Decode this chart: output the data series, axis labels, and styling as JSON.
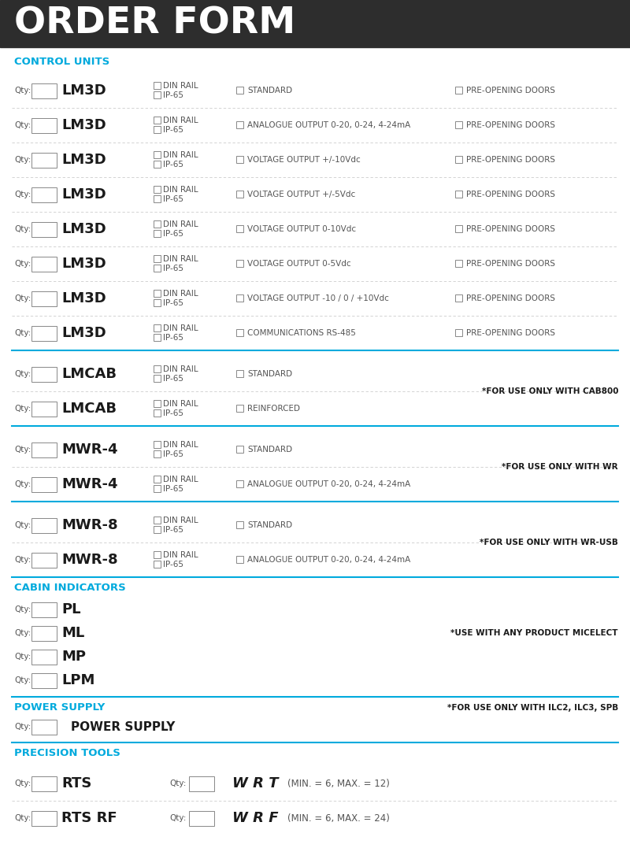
{
  "title": "ORDER FORM",
  "title_bg": "#2d2d2d",
  "title_color": "#ffffff",
  "cyan_color": "#00aadd",
  "dark_text": "#1a1a1a",
  "gray_text": "#555555",
  "lm3d_rows": [
    {
      "model": "LM3D",
      "option": "STANDARD",
      "right": "PRE-OPENING DOORS"
    },
    {
      "model": "LM3D",
      "option": "ANALOGUE OUTPUT 0-20, 0-24, 4-24mA",
      "right": "PRE-OPENING DOORS"
    },
    {
      "model": "LM3D",
      "option": "VOLTAGE OUTPUT +/-10Vdc",
      "right": "PRE-OPENING DOORS"
    },
    {
      "model": "LM3D",
      "option": "VOLTAGE OUTPUT +/-5Vdc",
      "right": "PRE-OPENING DOORS"
    },
    {
      "model": "LM3D",
      "option": "VOLTAGE OUTPUT 0-10Vdc",
      "right": "PRE-OPENING DOORS"
    },
    {
      "model": "LM3D",
      "option": "VOLTAGE OUTPUT 0-5Vdc",
      "right": "PRE-OPENING DOORS"
    },
    {
      "model": "LM3D",
      "option": "VOLTAGE OUTPUT -10 / 0 / +10Vdc",
      "right": "PRE-OPENING DOORS"
    },
    {
      "model": "LM3D",
      "option": "COMMUNICATIONS RS-485",
      "right": "PRE-OPENING DOORS"
    }
  ],
  "lmcab_rows": [
    {
      "model": "LMCAB",
      "option": "STANDARD"
    },
    {
      "model": "LMCAB",
      "option": "REINFORCED"
    }
  ],
  "lmcab_note": "*FOR USE ONLY WITH CAB800",
  "mwr4_rows": [
    {
      "model": "MWR-4",
      "option": "STANDARD"
    },
    {
      "model": "MWR-4",
      "option": "ANALOGUE OUTPUT 0-20, 0-24, 4-24mA"
    }
  ],
  "mwr4_note": "*FOR USE ONLY WITH WR",
  "mwr8_rows": [
    {
      "model": "MWR-8",
      "option": "STANDARD"
    },
    {
      "model": "MWR-8",
      "option": "ANALOGUE OUTPUT 0-20, 0-24, 4-24mA"
    }
  ],
  "mwr8_note": "*FOR USE ONLY WITH WR-USB",
  "cabin_items": [
    "PL",
    "ML",
    "MP",
    "LPM"
  ],
  "cabin_note": "*USE WITH ANY PRODUCT MICELECT",
  "ps_note": "*FOR USE ONLY WITH ILC2, ILC3, SPB",
  "pt_rows": [
    {
      "model": "RTS",
      "right_model": "W R T",
      "right_spec": "(MIN. = 6, MAX. = 12)"
    },
    {
      "model": "RTS RF",
      "right_model": "W R F",
      "right_spec": "(MIN. = 6, MAX. = 24)"
    }
  ]
}
